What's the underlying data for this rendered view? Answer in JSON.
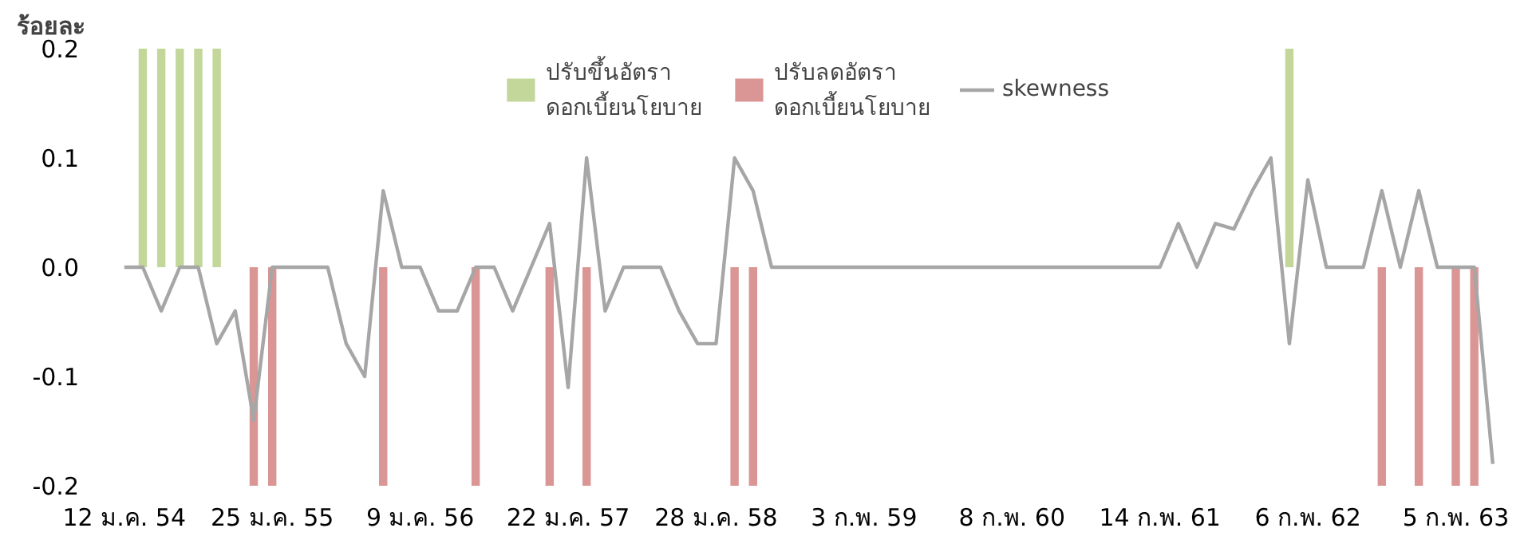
{
  "chart_data": {
    "type": "bar",
    "ylabel": "ร้อยละ",
    "categories": [
      "12 ม.ค. 54",
      null,
      null,
      null,
      null,
      null,
      null,
      null,
      "25 ม.ค. 55",
      null,
      null,
      null,
      null,
      null,
      null,
      null,
      "9 ม.ค. 56",
      null,
      null,
      null,
      null,
      null,
      null,
      null,
      "22 ม.ค. 57",
      null,
      null,
      null,
      null,
      null,
      null,
      null,
      "28 ม.ค. 58",
      null,
      null,
      null,
      null,
      null,
      null,
      null,
      "3 ก.พ. 59",
      null,
      null,
      null,
      null,
      null,
      null,
      null,
      "8 ก.พ. 60",
      null,
      null,
      null,
      null,
      null,
      null,
      null,
      "14 ก.พ. 61",
      null,
      null,
      null,
      null,
      null,
      null,
      null,
      "6 ก.พ. 62",
      null,
      null,
      null,
      null,
      null,
      null,
      null,
      "5 ก.พ. 63",
      null,
      null
    ],
    "series": [
      {
        "name": "ปรับขึ้นอัตรา\nดอกเบี้ยนโยบาย",
        "color": "#c4d79b",
        "values": [
          null,
          0.2,
          0.2,
          0.2,
          0.2,
          0.2,
          null,
          null,
          null,
          null,
          null,
          null,
          null,
          null,
          null,
          null,
          null,
          null,
          null,
          null,
          null,
          null,
          null,
          null,
          null,
          null,
          null,
          null,
          null,
          null,
          null,
          null,
          null,
          null,
          null,
          null,
          null,
          null,
          null,
          null,
          null,
          null,
          null,
          null,
          null,
          null,
          null,
          null,
          null,
          null,
          null,
          null,
          null,
          null,
          null,
          null,
          null,
          null,
          null,
          null,
          null,
          null,
          null,
          0.2,
          null,
          null,
          null,
          null,
          null,
          null,
          null,
          null,
          null,
          null,
          null
        ]
      },
      {
        "name": "ปรับลดอัตรา\nดอกเบี้ยนโยบาย",
        "color": "#da9694",
        "values": [
          null,
          null,
          null,
          null,
          null,
          null,
          null,
          -0.2,
          -0.2,
          null,
          null,
          null,
          null,
          null,
          -0.2,
          null,
          null,
          null,
          null,
          -0.2,
          null,
          null,
          null,
          -0.2,
          null,
          -0.2,
          null,
          null,
          null,
          null,
          null,
          null,
          null,
          -0.2,
          -0.2,
          null,
          null,
          null,
          null,
          null,
          null,
          null,
          null,
          null,
          null,
          null,
          null,
          null,
          null,
          null,
          null,
          null,
          null,
          null,
          null,
          null,
          null,
          null,
          null,
          null,
          null,
          null,
          null,
          null,
          null,
          null,
          null,
          null,
          -0.2,
          null,
          -0.2,
          null,
          -0.2,
          -0.2,
          null
        ]
      },
      {
        "name": "skewness",
        "type": "line",
        "color": "#a6a6a6",
        "values": [
          0,
          0,
          -0.04,
          0,
          0,
          -0.07,
          -0.04,
          -0.14,
          0,
          0,
          0,
          0,
          -0.07,
          -0.1,
          0.07,
          0,
          0,
          -0.04,
          -0.04,
          0,
          0,
          -0.04,
          0,
          0.04,
          -0.11,
          0.1,
          -0.04,
          0,
          0,
          0,
          -0.04,
          -0.07,
          -0.07,
          0.1,
          0.07,
          0,
          0,
          0,
          0,
          0,
          0,
          0,
          0,
          0,
          0,
          0,
          0,
          0,
          0,
          0,
          0,
          0,
          0,
          0,
          0,
          0,
          0,
          0.04,
          0,
          0.04,
          0.035,
          0.07,
          0.1,
          -0.07,
          0.08,
          0,
          0,
          0,
          0.07,
          0,
          0.07,
          0,
          0,
          0,
          -0.18
        ]
      }
    ],
    "ylim": [
      -0.2,
      0.2
    ],
    "yticks": [
      0.2,
      0.1,
      {
        "value": 0,
        "label": "0.0"
      },
      -0.1,
      -0.2
    ],
    "grid": false,
    "legend": "top"
  }
}
